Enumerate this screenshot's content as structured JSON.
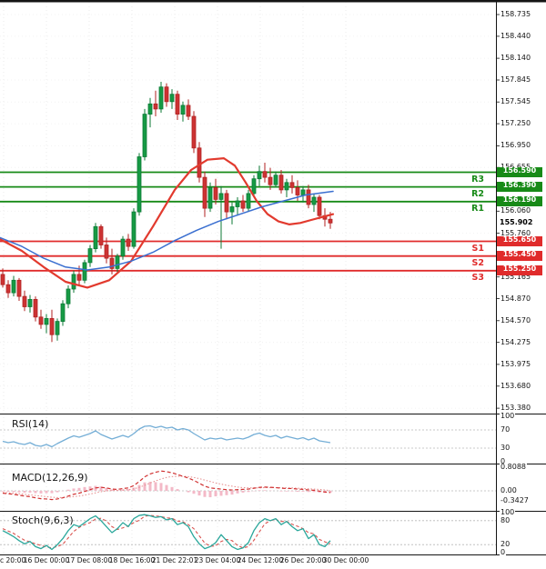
{
  "colors": {
    "up": "#0c7a36",
    "up_fill": "#169a44",
    "down": "#b22222",
    "down_fill": "#cc3333",
    "resistance": "#178a17",
    "support": "#e02b2b",
    "ma_fast": "#3a6fd0",
    "ma_slow": "#e23a2e",
    "rsi": "#74aed6",
    "macd_line": "#d03030",
    "macd_signal": "#e58a8a",
    "histogram": "#f3b9c7",
    "stoch_k": "#2aa79b",
    "stoch_d": "#d9534f",
    "axis": "#141414"
  },
  "chart_data": {
    "type": "candlestick",
    "title": "",
    "y_range": [
      153.38,
      158.735
    ],
    "current_price": "155.902",
    "current_price_value": 155.902,
    "y_axis_labels": [
      {
        "text": "158.735",
        "v": 158.735
      },
      {
        "text": "158.440",
        "v": 158.44
      },
      {
        "text": "158.140",
        "v": 158.14
      },
      {
        "text": "157.845",
        "v": 157.845
      },
      {
        "text": "157.545",
        "v": 157.545
      },
      {
        "text": "157.250",
        "v": 157.25
      },
      {
        "text": "156.950",
        "v": 156.95
      },
      {
        "text": "156.655",
        "v": 156.655
      },
      {
        "text": "156.060",
        "v": 156.06
      },
      {
        "text": "155.760",
        "v": 155.76
      },
      {
        "text": "155.165",
        "v": 155.165
      },
      {
        "text": "154.870",
        "v": 154.87
      },
      {
        "text": "154.570",
        "v": 154.57
      },
      {
        "text": "154.275",
        "v": 154.275
      },
      {
        "text": "153.975",
        "v": 153.975
      },
      {
        "text": "153.680",
        "v": 153.68
      },
      {
        "text": "153.380",
        "v": 153.38
      }
    ],
    "levels": {
      "resistance": [
        {
          "name": "R3",
          "price": 156.59,
          "price_label": "156.590"
        },
        {
          "name": "R2",
          "price": 156.39,
          "price_label": "156.390"
        },
        {
          "name": "R1",
          "price": 156.19,
          "price_label": "156.190"
        }
      ],
      "support": [
        {
          "name": "S1",
          "price": 155.65,
          "price_label": "155.650"
        },
        {
          "name": "S2",
          "price": 155.45,
          "price_label": "155.450"
        },
        {
          "name": "S3",
          "price": 155.25,
          "price_label": "155.250"
        }
      ]
    },
    "x_axis_labels": [
      "c 20:00",
      "16 Dec 00:00",
      "17 Dec 08:00",
      "18 Dec 16:00",
      "21 Dec 22:01",
      "23 Dec 04:00",
      "24 Dec 12:00",
      "26 Dec 20:00",
      "30 Dec 00:00"
    ],
    "candles_ohlc": [
      [
        155.2,
        155.28,
        155.02,
        155.06
      ],
      [
        155.06,
        155.12,
        154.88,
        154.95
      ],
      [
        154.95,
        155.18,
        154.9,
        155.12
      ],
      [
        155.12,
        155.15,
        154.84,
        154.9
      ],
      [
        154.9,
        154.98,
        154.7,
        154.76
      ],
      [
        154.76,
        154.92,
        154.68,
        154.86
      ],
      [
        154.86,
        154.9,
        154.56,
        154.62
      ],
      [
        154.62,
        154.72,
        154.46,
        154.52
      ],
      [
        154.52,
        154.66,
        154.4,
        154.6
      ],
      [
        154.6,
        154.72,
        154.28,
        154.38
      ],
      [
        154.38,
        154.6,
        154.3,
        154.56
      ],
      [
        154.56,
        154.85,
        154.5,
        154.8
      ],
      [
        154.8,
        155.05,
        154.74,
        155.0
      ],
      [
        155.0,
        155.25,
        154.95,
        155.2
      ],
      [
        155.2,
        155.32,
        155.05,
        155.12
      ],
      [
        155.12,
        155.4,
        155.08,
        155.36
      ],
      [
        155.36,
        155.6,
        155.3,
        155.55
      ],
      [
        155.55,
        155.9,
        155.5,
        155.85
      ],
      [
        155.85,
        155.88,
        155.55,
        155.6
      ],
      [
        155.6,
        155.7,
        155.35,
        155.42
      ],
      [
        155.42,
        155.55,
        155.2,
        155.28
      ],
      [
        155.28,
        155.48,
        155.22,
        155.45
      ],
      [
        155.45,
        155.72,
        155.4,
        155.68
      ],
      [
        155.68,
        155.75,
        155.52,
        155.58
      ],
      [
        155.58,
        156.1,
        155.55,
        156.05
      ],
      [
        156.05,
        156.85,
        156.0,
        156.8
      ],
      [
        156.8,
        157.45,
        156.75,
        157.38
      ],
      [
        157.38,
        157.6,
        157.2,
        157.52
      ],
      [
        157.52,
        157.7,
        157.35,
        157.45
      ],
      [
        157.45,
        157.82,
        157.4,
        157.75
      ],
      [
        157.75,
        157.8,
        157.48,
        157.55
      ],
      [
        157.55,
        157.72,
        157.45,
        157.65
      ],
      [
        157.65,
        157.7,
        157.3,
        157.38
      ],
      [
        157.38,
        157.55,
        157.28,
        157.5
      ],
      [
        157.5,
        157.58,
        157.3,
        157.35
      ],
      [
        157.35,
        157.42,
        156.85,
        156.92
      ],
      [
        156.92,
        157.0,
        156.45,
        156.52
      ],
      [
        156.52,
        156.6,
        155.98,
        156.1
      ],
      [
        156.1,
        156.45,
        156.05,
        156.38
      ],
      [
        156.38,
        156.5,
        156.15,
        156.22
      ],
      [
        156.22,
        156.4,
        155.55,
        156.3
      ],
      [
        156.3,
        156.35,
        155.95,
        156.05
      ],
      [
        156.05,
        156.18,
        155.88,
        156.12
      ],
      [
        156.12,
        156.25,
        156.0,
        156.2
      ],
      [
        156.2,
        156.28,
        156.05,
        156.1
      ],
      [
        156.1,
        156.35,
        156.05,
        156.3
      ],
      [
        156.3,
        156.55,
        156.25,
        156.5
      ],
      [
        156.5,
        156.68,
        156.4,
        156.6
      ],
      [
        156.6,
        156.72,
        156.45,
        156.52
      ],
      [
        156.52,
        156.65,
        156.35,
        156.42
      ],
      [
        156.42,
        156.6,
        156.38,
        156.55
      ],
      [
        156.55,
        156.62,
        156.3,
        156.35
      ],
      [
        156.35,
        156.5,
        156.25,
        156.45
      ],
      [
        156.45,
        156.55,
        156.3,
        156.38
      ],
      [
        156.38,
        156.48,
        156.2,
        156.28
      ],
      [
        156.28,
        156.4,
        156.18,
        156.35
      ],
      [
        156.35,
        156.42,
        156.1,
        156.15
      ],
      [
        156.15,
        156.3,
        156.05,
        156.25
      ],
      [
        156.25,
        156.28,
        155.95,
        156.0
      ],
      [
        156.0,
        156.1,
        155.85,
        155.95
      ],
      [
        155.95,
        156.05,
        155.82,
        155.9
      ]
    ],
    "overlays": {
      "ma_fast_points": [
        [
          0,
          155.7
        ],
        [
          24,
          155.58
        ],
        [
          48,
          155.42
        ],
        [
          72,
          155.3
        ],
        [
          96,
          155.26
        ],
        [
          120,
          155.3
        ],
        [
          144,
          155.38
        ],
        [
          168,
          155.5
        ],
        [
          192,
          155.66
        ],
        [
          216,
          155.8
        ],
        [
          240,
          155.92
        ],
        [
          264,
          156.02
        ],
        [
          288,
          156.12
        ],
        [
          312,
          156.2
        ],
        [
          336,
          156.28
        ],
        [
          366,
          156.33
        ]
      ],
      "ma_slow_points": [
        [
          0,
          155.68
        ],
        [
          24,
          155.52
        ],
        [
          48,
          155.3
        ],
        [
          72,
          155.1
        ],
        [
          96,
          155.02
        ],
        [
          120,
          155.12
        ],
        [
          144,
          155.38
        ],
        [
          168,
          155.85
        ],
        [
          192,
          156.35
        ],
        [
          210,
          156.62
        ],
        [
          228,
          156.76
        ],
        [
          246,
          156.78
        ],
        [
          258,
          156.68
        ],
        [
          270,
          156.45
        ],
        [
          282,
          156.2
        ],
        [
          294,
          156.02
        ],
        [
          306,
          155.92
        ],
        [
          318,
          155.88
        ],
        [
          330,
          155.9
        ],
        [
          342,
          155.94
        ],
        [
          354,
          155.98
        ],
        [
          366,
          156.02
        ]
      ]
    },
    "panels": {
      "rsi": {
        "name": "RSI(14)",
        "axis": [
          {
            "text": "100",
            "v": 100
          },
          {
            "text": "70",
            "v": 70
          },
          {
            "text": "30",
            "v": 30
          },
          {
            "text": "0",
            "v": 0
          }
        ],
        "guides": [
          70,
          30
        ],
        "values": [
          45,
          42,
          44,
          40,
          38,
          42,
          36,
          34,
          38,
          33,
          40,
          46,
          52,
          57,
          54,
          58,
          62,
          68,
          60,
          55,
          50,
          54,
          58,
          54,
          62,
          72,
          78,
          79,
          75,
          78,
          74,
          76,
          70,
          73,
          70,
          62,
          55,
          48,
          52,
          50,
          52,
          48,
          50,
          52,
          50,
          54,
          60,
          63,
          58,
          55,
          58,
          52,
          56,
          53,
          50,
          53,
          48,
          52,
          46,
          44,
          42
        ]
      },
      "macd": {
        "name": "MACD(12,26,9)",
        "axis": [
          {
            "text": "0.8088",
            "v": 0.8088
          },
          {
            "text": "0.00",
            "v": 0
          },
          {
            "text": "-0.3427",
            "v": -0.3427
          }
        ],
        "line": [
          -0.08,
          -0.1,
          -0.12,
          -0.15,
          -0.18,
          -0.2,
          -0.24,
          -0.27,
          -0.28,
          -0.3,
          -0.28,
          -0.24,
          -0.18,
          -0.12,
          -0.08,
          -0.02,
          0.04,
          0.1,
          0.12,
          0.1,
          0.06,
          0.05,
          0.08,
          0.1,
          0.18,
          0.32,
          0.48,
          0.58,
          0.64,
          0.68,
          0.66,
          0.62,
          0.56,
          0.5,
          0.44,
          0.36,
          0.26,
          0.16,
          0.1,
          0.08,
          0.06,
          0.04,
          0.03,
          0.04,
          0.05,
          0.06,
          0.09,
          0.12,
          0.13,
          0.12,
          0.11,
          0.09,
          0.08,
          0.08,
          0.06,
          0.05,
          0.03,
          0.02,
          -0.01,
          -0.04,
          -0.06
        ],
        "signal": [
          -0.06,
          -0.07,
          -0.08,
          -0.1,
          -0.12,
          -0.14,
          -0.16,
          -0.18,
          -0.2,
          -0.22,
          -0.23,
          -0.23,
          -0.22,
          -0.2,
          -0.18,
          -0.15,
          -0.11,
          -0.07,
          -0.03,
          0.0,
          0.01,
          0.02,
          0.03,
          0.04,
          0.07,
          0.12,
          0.19,
          0.27,
          0.34,
          0.41,
          0.46,
          0.49,
          0.5,
          0.5,
          0.49,
          0.46,
          0.42,
          0.37,
          0.32,
          0.27,
          0.23,
          0.19,
          0.16,
          0.13,
          0.11,
          0.1,
          0.1,
          0.1,
          0.11,
          0.11,
          0.11,
          0.11,
          0.1,
          0.1,
          0.09,
          0.08,
          0.07,
          0.06,
          0.05,
          0.03,
          0.01
        ]
      },
      "stoch": {
        "name": "Stoch(9,6,3)",
        "axis": [
          {
            "text": "100",
            "v": 100
          },
          {
            "text": "80",
            "v": 80
          },
          {
            "text": "20",
            "v": 20
          },
          {
            "text": "0",
            "v": 0
          }
        ],
        "guides": [
          80,
          20
        ],
        "k": [
          55,
          48,
          40,
          30,
          22,
          28,
          15,
          10,
          18,
          8,
          20,
          35,
          55,
          70,
          65,
          75,
          85,
          92,
          80,
          65,
          50,
          60,
          75,
          65,
          85,
          93,
          95,
          92,
          88,
          90,
          82,
          85,
          70,
          75,
          65,
          40,
          22,
          10,
          15,
          25,
          45,
          30,
          15,
          8,
          12,
          25,
          55,
          75,
          85,
          80,
          85,
          70,
          78,
          65,
          55,
          60,
          35,
          45,
          20,
          15,
          30
        ],
        "d": [
          60,
          54,
          48,
          39,
          31,
          27,
          22,
          18,
          14,
          12,
          15,
          21,
          37,
          53,
          63,
          70,
          75,
          84,
          86,
          79,
          65,
          58,
          62,
          67,
          75,
          81,
          91,
          93,
          92,
          90,
          87,
          86,
          79,
          77,
          70,
          60,
          42,
          24,
          16,
          17,
          28,
          33,
          30,
          18,
          12,
          15,
          31,
          52,
          72,
          80,
          83,
          78,
          78,
          71,
          66,
          60,
          50,
          47,
          33,
          27,
          22
        ]
      }
    }
  }
}
